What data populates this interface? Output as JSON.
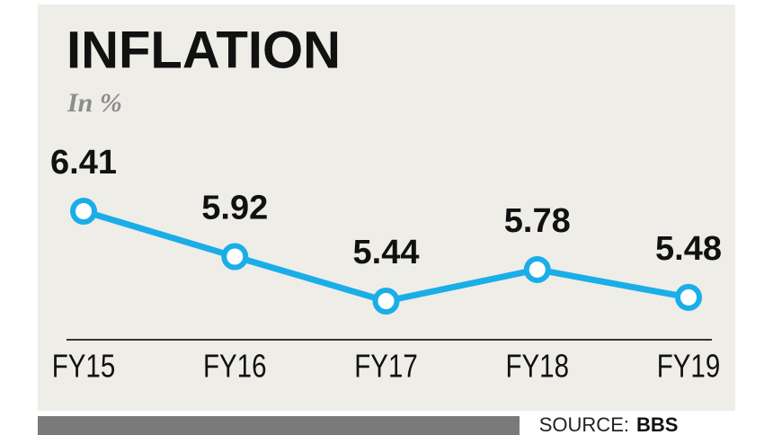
{
  "chart_data": {
    "type": "line",
    "title": "INFLATION",
    "subtitle": "In %",
    "categories": [
      "FY15",
      "FY16",
      "FY17",
      "FY18",
      "FY19"
    ],
    "values": [
      6.41,
      5.92,
      5.44,
      5.78,
      5.48
    ],
    "color": "#1aaee8",
    "source_label": "SOURCE:",
    "source": "BBS"
  }
}
